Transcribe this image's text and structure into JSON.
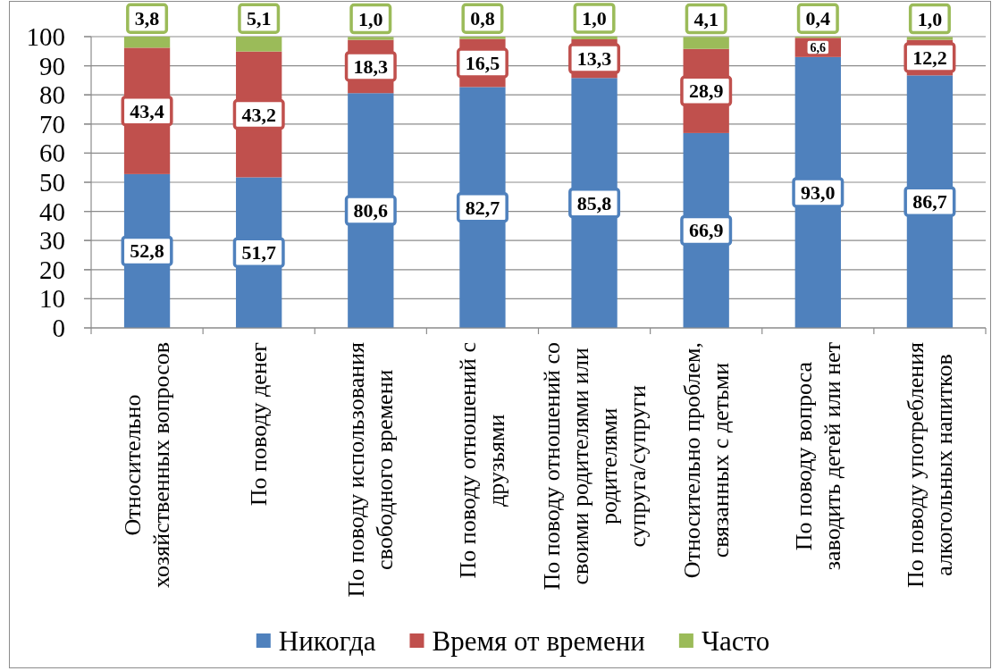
{
  "chart_data": {
    "type": "bar",
    "stacked": true,
    "categories": [
      "Относительно хозяйственных вопросов",
      "По поводу денег",
      "По поводу использования свободного времени",
      "По поводу отношений с друзьями",
      "По поводу отношений со своими родителями или родителями супруга/супруги",
      "Относительно проблем, связанных с детьми",
      "По поводу вопроса заводить детей или нет",
      "По поводу употребления алкогольных напитков"
    ],
    "series": [
      {
        "name": "Никогда",
        "color": "#4f81bd",
        "values": [
          52.8,
          51.7,
          80.6,
          82.7,
          85.8,
          66.9,
          93.0,
          86.7
        ],
        "value_labels": [
          "52,8",
          "51,7",
          "80,6",
          "82,7",
          "85,8",
          "66,9",
          "93,0",
          "86,7"
        ]
      },
      {
        "name": "Время от времени",
        "color": "#c0504d",
        "values": [
          43.4,
          43.2,
          18.3,
          16.5,
          13.3,
          28.9,
          6.6,
          12.2
        ],
        "value_labels": [
          "43,4",
          "43,2",
          "18,3",
          "16,5",
          "13,3",
          "28,9",
          "6,6",
          "12,2"
        ]
      },
      {
        "name": "Часто",
        "color": "#9bbb59",
        "values": [
          3.8,
          5.1,
          1.0,
          0.8,
          1.0,
          4.1,
          0.4,
          1.0
        ],
        "value_labels": [
          "3,8",
          "5,1",
          "1,0",
          "0,8",
          "1,0",
          "4,1",
          "0,4",
          "1,0"
        ]
      }
    ],
    "ylim": [
      0,
      100
    ],
    "yticks": [
      0,
      10,
      20,
      30,
      40,
      50,
      60,
      70,
      80,
      90,
      100
    ],
    "grid": "y",
    "legend": "bottom"
  }
}
